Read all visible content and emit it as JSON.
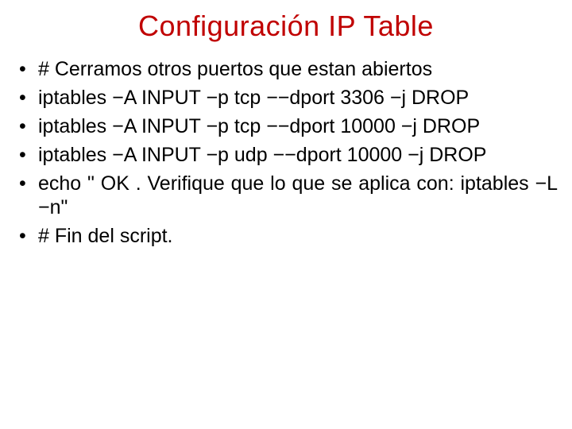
{
  "slide": {
    "title": "Configuración IP Table",
    "title_color": "#c00000",
    "title_fontsize": 36,
    "body_fontsize": 25,
    "body_color": "#000000",
    "background_color": "#ffffff",
    "bullets": [
      "# Cerramos otros puertos que estan abiertos",
      "iptables −A INPUT −p tcp −−dport 3306 −j DROP",
      "iptables −A INPUT −p tcp −−dport 10000 −j DROP",
      "iptables −A INPUT −p udp −−dport 10000 −j DROP",
      "echo \" OK . Verifique que lo que se aplica con: iptables −L −n\"",
      "# Fin del script."
    ]
  }
}
